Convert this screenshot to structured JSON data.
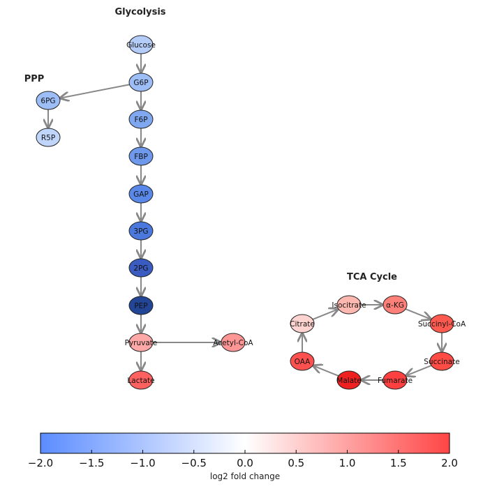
{
  "titles": {
    "glycolysis": "Glycolysis",
    "ppp": "PPP",
    "tca": "TCA Cycle"
  },
  "nodes": [
    {
      "id": "Glucose",
      "label": "Glucose",
      "color": "#b4cdf8"
    },
    {
      "id": "G6P",
      "label": "G6P",
      "color": "#9dbdf6"
    },
    {
      "id": "F6P",
      "label": "F6P",
      "color": "#80a8f0"
    },
    {
      "id": "FBP",
      "label": "FBP",
      "color": "#6d98ec"
    },
    {
      "id": "GAP",
      "label": "GAP",
      "color": "#5a88e8"
    },
    {
      "id": "3PG",
      "label": "3PG",
      "color": "#4a78dc"
    },
    {
      "id": "2PG",
      "label": "2PG",
      "color": "#3a5cc0"
    },
    {
      "id": "PEP",
      "label": "PEP",
      "color": "#234596"
    },
    {
      "id": "Pyruvate",
      "label": "Pyruvate",
      "color": "#ffa8a8"
    },
    {
      "id": "Lactate",
      "label": "Lactate",
      "color": "#ff6060"
    },
    {
      "id": "Acetyl-CoA",
      "label": "Acetyl-CoA",
      "color": "#ff9696"
    },
    {
      "id": "6PG",
      "label": "6PG",
      "color": "#9dbdf6"
    },
    {
      "id": "R5P",
      "label": "R5P",
      "color": "#c0d5fa"
    },
    {
      "id": "Citrate",
      "label": "Citrate",
      "color": "#ffd4d0"
    },
    {
      "id": "Isocitrate",
      "label": "Isocitrate",
      "color": "#ffb8b0"
    },
    {
      "id": "aKG",
      "label": "α-KG",
      "color": "#ff8078"
    },
    {
      "id": "Succinyl-CoA",
      "label": "Succinyl-CoA",
      "color": "#ff5a50"
    },
    {
      "id": "Succinate",
      "label": "Succinate",
      "color": "#ff4c44"
    },
    {
      "id": "Fumarate",
      "label": "Fumarate",
      "color": "#ff4040"
    },
    {
      "id": "Malate",
      "label": "Malate",
      "color": "#ee2020"
    },
    {
      "id": "OAA",
      "label": "OAA",
      "color": "#ff5050"
    }
  ],
  "edges": [
    [
      "Glucose",
      "G6P"
    ],
    [
      "G6P",
      "F6P"
    ],
    [
      "F6P",
      "FBP"
    ],
    [
      "FBP",
      "GAP"
    ],
    [
      "GAP",
      "3PG"
    ],
    [
      "3PG",
      "2PG"
    ],
    [
      "2PG",
      "PEP"
    ],
    [
      "PEP",
      "Pyruvate"
    ],
    [
      "Pyruvate",
      "Lactate"
    ],
    [
      "Pyruvate",
      "Acetyl-CoA"
    ],
    [
      "G6P",
      "6PG"
    ],
    [
      "6PG",
      "R5P"
    ],
    [
      "Citrate",
      "Isocitrate"
    ],
    [
      "Isocitrate",
      "aKG"
    ],
    [
      "aKG",
      "Succinyl-CoA"
    ],
    [
      "Succinyl-CoA",
      "Succinate"
    ],
    [
      "Succinate",
      "Fumarate"
    ],
    [
      "Fumarate",
      "Malate"
    ],
    [
      "Malate",
      "OAA"
    ],
    [
      "OAA",
      "Citrate"
    ]
  ],
  "colorbar": {
    "label": "log2 fold change",
    "min": -2.0,
    "max": 2.0,
    "ticks": [
      "−2.0",
      "−1.5",
      "−1.0",
      "−0.5",
      "0.0",
      "0.5",
      "1.0",
      "1.5",
      "2.0"
    ],
    "colors": {
      "low": "#5b8cff",
      "mid": "#ffffff",
      "high": "#ff4545"
    }
  },
  "edge_color": "#888888"
}
